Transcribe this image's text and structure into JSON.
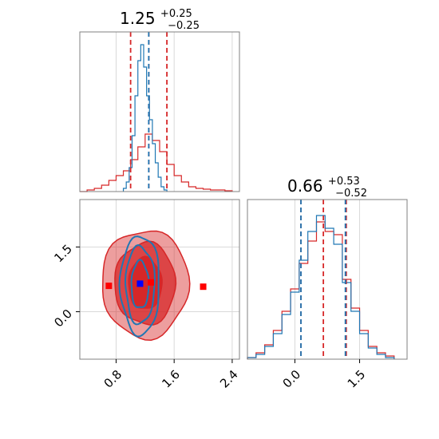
{
  "chart_data": [
    {
      "panel": "marginal-x",
      "type": "histogram",
      "title": {
        "median": "1.25",
        "plus": "+0.25",
        "minus": "−0.25"
      },
      "xlim": [
        0.3,
        2.5
      ],
      "grid": true,
      "series": [
        {
          "color": "#1f77b4",
          "bins": [
            0.9,
            0.94,
            0.98,
            1.02,
            1.06,
            1.1,
            1.14,
            1.18,
            1.22,
            1.26,
            1.3,
            1.34,
            1.38,
            1.42,
            1.46,
            1.5
          ],
          "counts": [
            0.02,
            0.06,
            0.15,
            0.35,
            0.6,
            0.82,
            0.92,
            0.78,
            0.6,
            0.45,
            0.3,
            0.18,
            0.09,
            0.03,
            0.01
          ],
          "quantile_lines": [
            1.25
          ]
        },
        {
          "color": "#d62728",
          "bins": [
            0.3,
            0.4,
            0.5,
            0.6,
            0.7,
            0.8,
            0.9,
            1.0,
            1.1,
            1.2,
            1.3,
            1.4,
            1.5,
            1.6,
            1.7,
            1.8,
            1.9,
            2.0,
            2.1,
            2.2,
            2.3,
            2.4
          ],
          "counts": [
            0.0,
            0.01,
            0.02,
            0.04,
            0.07,
            0.1,
            0.13,
            0.2,
            0.28,
            0.36,
            0.32,
            0.25,
            0.17,
            0.1,
            0.06,
            0.03,
            0.02,
            0.015,
            0.01,
            0.01,
            0.005
          ],
          "quantile_lines": [
            1.0,
            1.25,
            1.5
          ]
        }
      ],
      "xticks": [
        0.8,
        1.6,
        2.4
      ]
    },
    {
      "panel": "joint",
      "type": "contour",
      "xlim": [
        0.3,
        2.5
      ],
      "ylim": [
        -1.1,
        2.6
      ],
      "grid": true,
      "xticks": [
        "0.8",
        "1.6",
        "2.4"
      ],
      "yticks": [
        "0.0",
        "1.5"
      ],
      "series": [
        {
          "color": "#d62728",
          "filled": true,
          "center": [
            1.2,
            0.65
          ],
          "levels": [
            {
              "rx": 0.23,
              "ry": 0.6,
              "alpha": 1.0
            },
            {
              "rx": 0.42,
              "ry": 0.95,
              "alpha": 0.75
            },
            {
              "rx": 0.6,
              "ry": 1.25,
              "alpha": 0.45
            }
          ],
          "markers": [
            [
              0.7,
              0.6
            ],
            [
              2.0,
              0.58
            ],
            [
              1.28,
              0.68
            ]
          ]
        },
        {
          "color": "#1f77b4",
          "filled": false,
          "center": [
            1.13,
            0.62
          ],
          "levels": [
            {
              "rx": 0.12,
              "ry": 0.55
            },
            {
              "rx": 0.2,
              "ry": 0.9
            },
            {
              "rx": 0.27,
              "ry": 1.15
            }
          ],
          "markers": [
            [
              1.13,
              0.65
            ]
          ]
        }
      ]
    },
    {
      "panel": "marginal-y",
      "type": "histogram",
      "title": {
        "median": "0.66",
        "plus": "+0.53",
        "minus": "−0.52"
      },
      "xlim": [
        -1.1,
        2.6
      ],
      "grid": true,
      "xticks": [
        "0.0",
        "1.5"
      ],
      "series": [
        {
          "color": "#1f77b4",
          "bins": [
            -1.1,
            -0.9,
            -0.7,
            -0.5,
            -0.3,
            -0.1,
            0.1,
            0.3,
            0.5,
            0.7,
            0.9,
            1.1,
            1.3,
            1.5,
            1.7,
            1.9,
            2.1,
            2.3
          ],
          "counts": [
            0.01,
            0.03,
            0.08,
            0.16,
            0.28,
            0.42,
            0.62,
            0.8,
            0.9,
            0.82,
            0.72,
            0.48,
            0.3,
            0.16,
            0.07,
            0.03,
            0.01
          ],
          "quantile_lines": [
            0.14,
            1.17
          ]
        },
        {
          "color": "#d62728",
          "bins": [
            -1.1,
            -0.9,
            -0.7,
            -0.5,
            -0.3,
            -0.1,
            0.1,
            0.3,
            0.5,
            0.7,
            0.9,
            1.1,
            1.3,
            1.5,
            1.7,
            1.9,
            2.1,
            2.3
          ],
          "counts": [
            0.01,
            0.04,
            0.09,
            0.18,
            0.3,
            0.44,
            0.6,
            0.74,
            0.86,
            0.8,
            0.78,
            0.5,
            0.32,
            0.18,
            0.08,
            0.04,
            0.02
          ],
          "quantile_lines": [
            0.14,
            0.66,
            1.19
          ]
        }
      ]
    }
  ]
}
